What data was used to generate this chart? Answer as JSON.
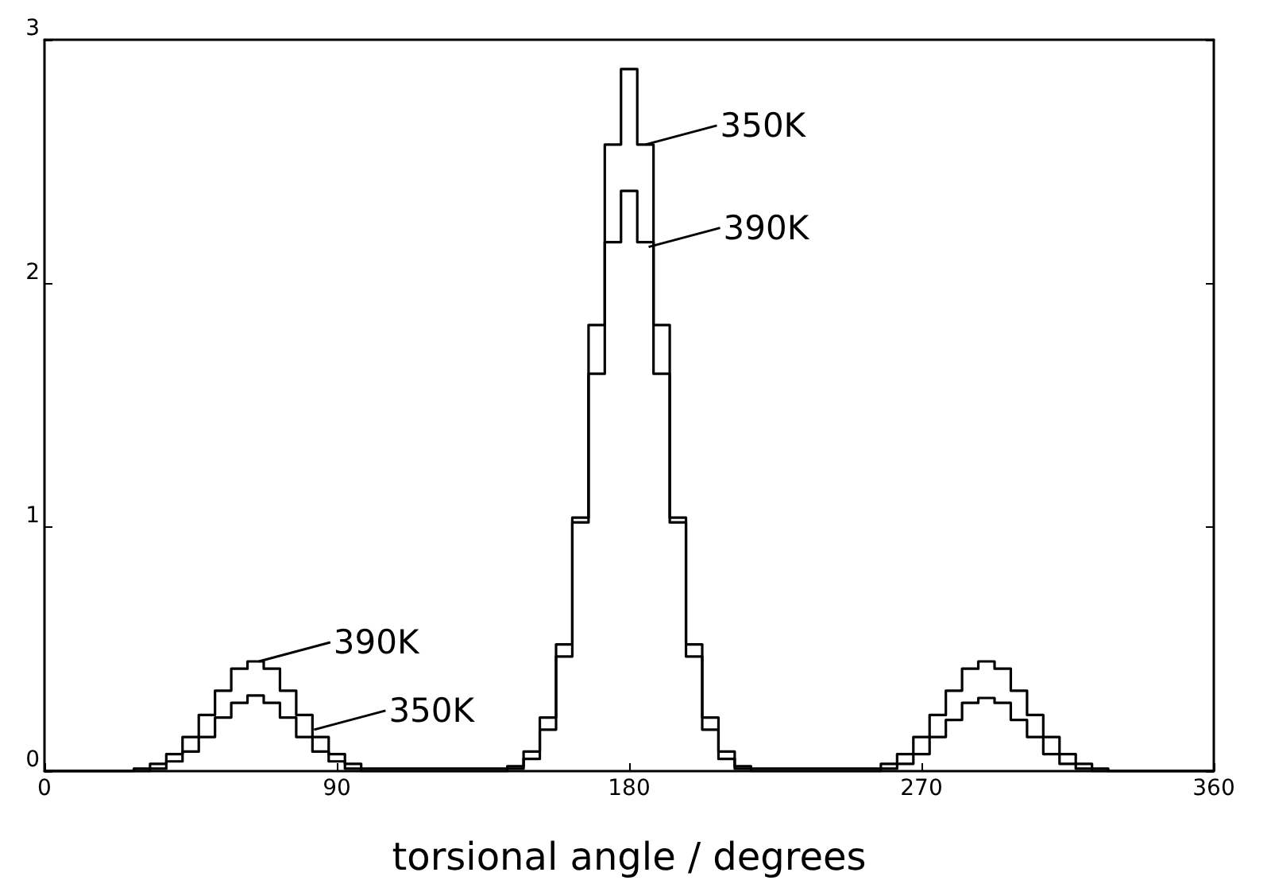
{
  "chart_data": {
    "type": "step",
    "xlabel": "torsional angle / degrees",
    "x": [
      0,
      5,
      10,
      15,
      20,
      25,
      30,
      35,
      40,
      45,
      50,
      55,
      60,
      65,
      70,
      75,
      80,
      85,
      90,
      95,
      100,
      105,
      110,
      115,
      120,
      125,
      130,
      135,
      140,
      145,
      150,
      155,
      160,
      165,
      170,
      175,
      180,
      185,
      190,
      195,
      200,
      205,
      210,
      215,
      220,
      225,
      230,
      235,
      240,
      245,
      250,
      255,
      260,
      265,
      270,
      275,
      280,
      285,
      290,
      295,
      300,
      305,
      310,
      315,
      320,
      325,
      330,
      335,
      340,
      345,
      350,
      355,
      360
    ],
    "series": [
      {
        "color": "#000000",
        "values": [
          0,
          0,
          0,
          0,
          0,
          0,
          0,
          0.01,
          0.04,
          0.08,
          0.14,
          0.22,
          0.28,
          0.31,
          0.28,
          0.22,
          0.14,
          0.08,
          0.04,
          0.01,
          0,
          0,
          0,
          0,
          0,
          0,
          0,
          0,
          0,
          0.01,
          0.05,
          0.17,
          0.47,
          1.04,
          1.83,
          2.57,
          2.88,
          2.57,
          1.83,
          1.04,
          0.47,
          0.17,
          0.05,
          0.01,
          0,
          0,
          0,
          0,
          0,
          0,
          0,
          0,
          0.01,
          0.03,
          0.07,
          0.14,
          0.21,
          0.28,
          0.3,
          0.28,
          0.21,
          0.14,
          0.07,
          0.03,
          0.01,
          0,
          0,
          0,
          0,
          0,
          0,
          0,
          0
        ]
      },
      {
        "color": "#000000",
        "values": [
          0,
          0,
          0,
          0,
          0,
          0,
          0.01,
          0.03,
          0.07,
          0.14,
          0.23,
          0.33,
          0.42,
          0.45,
          0.42,
          0.33,
          0.23,
          0.14,
          0.07,
          0.03,
          0.01,
          0.01,
          0.01,
          0.01,
          0.01,
          0.01,
          0.01,
          0.01,
          0.01,
          0.02,
          0.08,
          0.22,
          0.52,
          1.02,
          1.63,
          2.17,
          2.38,
          2.17,
          1.63,
          1.02,
          0.52,
          0.22,
          0.08,
          0.02,
          0.01,
          0.01,
          0.01,
          0.01,
          0.01,
          0.01,
          0.01,
          0.01,
          0.03,
          0.07,
          0.14,
          0.23,
          0.33,
          0.42,
          0.45,
          0.42,
          0.33,
          0.23,
          0.14,
          0.07,
          0.03,
          0.01,
          0,
          0,
          0,
          0,
          0,
          0,
          0
        ]
      }
    ],
    "annotations": [
      {
        "text": "350K",
        "x": 185,
        "y": 2.57
      },
      {
        "text": "390K",
        "x": 186,
        "y": 2.15
      },
      {
        "text": "390K",
        "x": 66,
        "y": 0.45
      },
      {
        "text": "350K",
        "x": 83,
        "y": 0.17
      }
    ],
    "xlim": [
      0,
      360
    ],
    "xticks": [
      0,
      90,
      180,
      270,
      360
    ],
    "ylim": [
      0,
      3
    ],
    "yticks": [
      0,
      1,
      2,
      3
    ],
    "grid": false,
    "marker": "none",
    "line_style": "solid"
  }
}
